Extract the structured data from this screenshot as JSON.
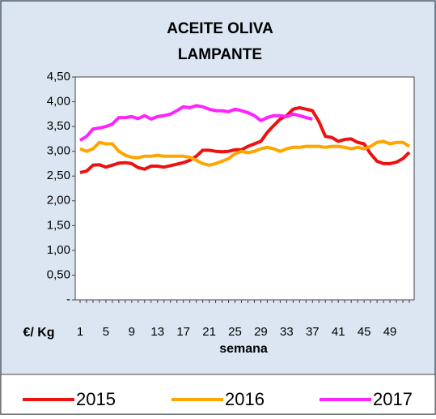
{
  "chart_data": {
    "type": "line",
    "title": [
      "ACEITE OLIVA",
      "LAMPANTE"
    ],
    "y_label": "€/ Kg",
    "x_label": "semana",
    "categories": [
      1,
      null,
      null,
      null,
      5,
      null,
      null,
      null,
      9,
      null,
      null,
      null,
      13,
      null,
      null,
      null,
      17,
      null,
      null,
      null,
      21,
      null,
      null,
      null,
      25,
      null,
      null,
      null,
      29,
      null,
      null,
      null,
      33,
      null,
      null,
      null,
      37,
      null,
      null,
      null,
      41,
      null,
      null,
      null,
      45,
      null,
      null,
      null,
      49,
      null,
      null,
      null
    ],
    "series": [
      {
        "name": "2015",
        "color": "#ee1111",
        "values": [
          2.57,
          2.6,
          2.72,
          2.73,
          2.68,
          2.72,
          2.76,
          2.77,
          2.75,
          2.67,
          2.64,
          2.7,
          2.7,
          2.68,
          2.71,
          2.74,
          2.77,
          2.82,
          2.9,
          3.02,
          3.02,
          3.0,
          2.99,
          3.0,
          3.03,
          3.03,
          3.1,
          3.15,
          3.2,
          3.38,
          3.52,
          3.65,
          3.72,
          3.85,
          3.88,
          3.85,
          3.82,
          3.6,
          3.3,
          3.28,
          3.2,
          3.24,
          3.25,
          3.18,
          3.15,
          2.95,
          2.8,
          2.75,
          2.75,
          2.78,
          2.85,
          2.98
        ]
      },
      {
        "name": "2016",
        "color": "#ffa500",
        "values": [
          3.05,
          3.0,
          3.05,
          3.18,
          3.15,
          3.15,
          3.0,
          2.92,
          2.88,
          2.87,
          2.9,
          2.9,
          2.92,
          2.9,
          2.9,
          2.9,
          2.9,
          2.88,
          2.82,
          2.75,
          2.72,
          2.75,
          2.8,
          2.85,
          2.95,
          3.0,
          2.97,
          3.0,
          3.05,
          3.08,
          3.05,
          3.0,
          3.05,
          3.08,
          3.08,
          3.1,
          3.1,
          3.1,
          3.08,
          3.1,
          3.1,
          3.08,
          3.05,
          3.08,
          3.05,
          3.1,
          3.18,
          3.2,
          3.15,
          3.18,
          3.18,
          3.1
        ]
      },
      {
        "name": "2017",
        "color": "#ff22ff",
        "values": [
          3.22,
          3.3,
          3.45,
          3.47,
          3.5,
          3.55,
          3.68,
          3.68,
          3.7,
          3.66,
          3.72,
          3.65,
          3.7,
          3.72,
          3.75,
          3.82,
          3.9,
          3.88,
          3.92,
          3.9,
          3.85,
          3.82,
          3.82,
          3.8,
          3.85,
          3.82,
          3.78,
          3.72,
          3.62,
          3.68,
          3.72,
          3.72,
          3.7,
          3.75,
          3.72,
          3.68,
          3.65,
          null,
          null,
          null,
          null,
          null,
          null,
          null,
          null,
          null,
          null,
          null,
          null,
          null,
          null,
          null
        ]
      }
    ],
    "ylim": [
      0,
      4.5
    ],
    "yticks": [
      {
        "value": 0,
        "label": "-"
      },
      {
        "value": 0.5,
        "label": "0,50"
      },
      {
        "value": 1,
        "label": "1,00"
      },
      {
        "value": 1.5,
        "label": "1,50"
      },
      {
        "value": 2,
        "label": "2,00"
      },
      {
        "value": 2.5,
        "label": "2,50"
      },
      {
        "value": 3,
        "label": "3,00"
      },
      {
        "value": 3.5,
        "label": "3,50"
      },
      {
        "value": 4,
        "label": "4,00"
      },
      {
        "value": 4.5,
        "label": "4,50"
      }
    ],
    "grid": false
  }
}
